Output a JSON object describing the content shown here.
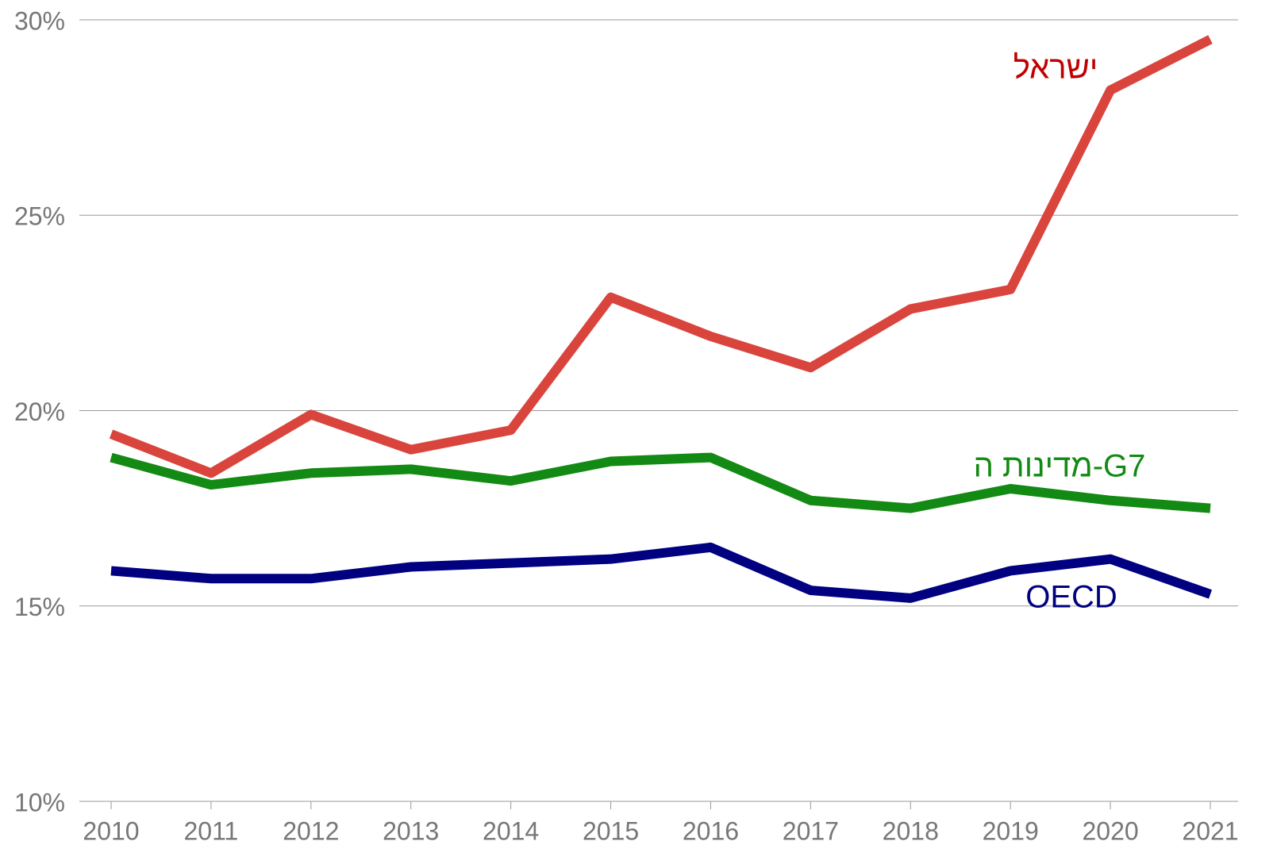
{
  "chart_data": {
    "type": "line",
    "categories": [
      "2010",
      "2011",
      "2012",
      "2013",
      "2014",
      "2015",
      "2016",
      "2017",
      "2018",
      "2019",
      "2020",
      "2021"
    ],
    "series": [
      {
        "name": "ישראל",
        "color": "#d9453d",
        "label_color": "#c00000",
        "values": [
          19.4,
          18.4,
          19.9,
          19.0,
          19.5,
          22.9,
          21.9,
          21.1,
          22.6,
          23.1,
          28.2,
          29.5
        ]
      },
      {
        "name": "מדינות ה-G7",
        "color": "#138a13",
        "label_color": "#138a13",
        "values": [
          18.8,
          18.1,
          18.4,
          18.5,
          18.2,
          18.7,
          18.8,
          17.7,
          17.5,
          18.0,
          17.7,
          17.5
        ]
      },
      {
        "name": "OECD",
        "color": "#000080",
        "label_color": "#000080",
        "values": [
          15.9,
          15.7,
          15.7,
          16.0,
          16.1,
          16.2,
          16.5,
          15.4,
          15.2,
          15.9,
          16.2,
          15.3
        ]
      }
    ],
    "ylim": [
      10,
      30
    ],
    "yticks": [
      {
        "value": 10,
        "label": "10%"
      },
      {
        "value": 15,
        "label": "15%"
      },
      {
        "value": 20,
        "label": "20%"
      },
      {
        "value": 25,
        "label": "25%"
      },
      {
        "value": 30,
        "label": "30%"
      }
    ],
    "grid": true
  }
}
